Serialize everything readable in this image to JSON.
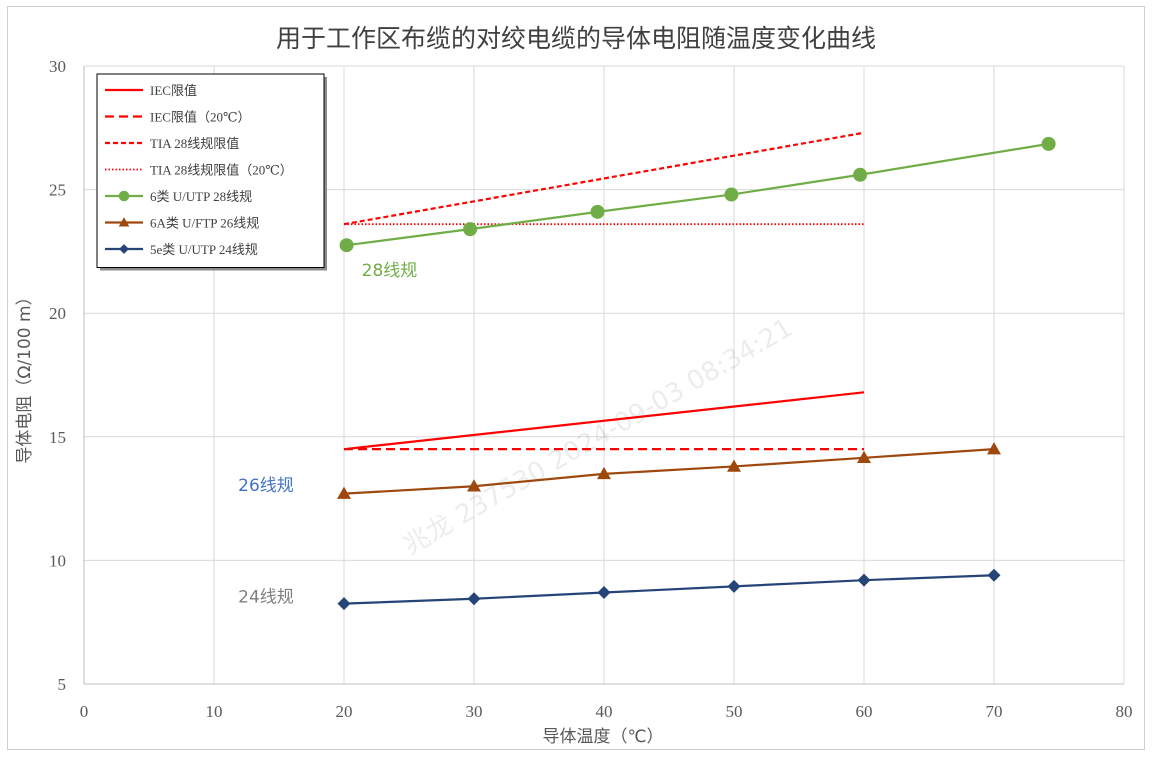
{
  "chart_data": {
    "type": "line",
    "title": "用于工作区布缆的对绞电缆的导体电阻随温度变化曲线",
    "xlabel": "导体温度（℃）",
    "ylabel": "导体电阻（Ω/100 m）",
    "xlim": [
      0,
      80
    ],
    "ylim": [
      5,
      30
    ],
    "x_ticks": [
      "0",
      "10",
      "20",
      "30",
      "40",
      "50",
      "60",
      "70",
      "80"
    ],
    "y_ticks": [
      "5",
      "10",
      "15",
      "20",
      "25",
      "30"
    ],
    "grid": true,
    "legend_position": "top-left",
    "series": [
      {
        "name": "IEC限值",
        "color": "#ff0000",
        "dash": "solid",
        "marker": "none",
        "x": [
          20,
          60
        ],
        "y": [
          14.5,
          16.8
        ]
      },
      {
        "name": "IEC限值（20℃）",
        "color": "#ff0000",
        "dash": "dashed",
        "marker": "none",
        "x": [
          20,
          60
        ],
        "y": [
          14.5,
          14.5
        ]
      },
      {
        "name": "TIA 28线规限值",
        "color": "#ff0000",
        "dash": "short-dash",
        "marker": "none",
        "x": [
          20,
          60
        ],
        "y": [
          23.6,
          27.3
        ]
      },
      {
        "name": "TIA 28线规限值（20℃）",
        "color": "#ff0000",
        "dash": "dotted",
        "marker": "none",
        "x": [
          20,
          60
        ],
        "y": [
          23.6,
          23.6
        ]
      },
      {
        "name": "6类 U/UTP 28线规",
        "color": "#70ad47",
        "dash": "solid",
        "marker": "circle",
        "x": [
          20.2,
          29.7,
          39.5,
          49.8,
          59.7,
          74.2
        ],
        "y": [
          22.75,
          23.4,
          24.1,
          24.8,
          25.6,
          26.85
        ]
      },
      {
        "name": "6A类 U/FTP 26线规",
        "color": "#9e480e",
        "dash": "solid",
        "marker": "triangle",
        "x": [
          20,
          30,
          40,
          50,
          60,
          70
        ],
        "y": [
          12.7,
          13.0,
          13.5,
          13.8,
          14.15,
          14.5
        ]
      },
      {
        "name": "5e类 U/UTP 24线规",
        "color": "#264478",
        "dash": "solid",
        "marker": "diamond",
        "x": [
          20,
          30,
          40,
          50,
          60,
          70
        ],
        "y": [
          8.25,
          8.45,
          8.7,
          8.95,
          9.2,
          9.4
        ]
      }
    ],
    "annotations": [
      {
        "text": "28线规",
        "x": 23.5,
        "y": 21.5,
        "color": "#70ad47"
      },
      {
        "text": "26线规",
        "x": 14,
        "y": 12.8,
        "color": "#4472c4"
      },
      {
        "text": "24线规",
        "x": 14,
        "y": 8.3,
        "color": "#7f7f7f"
      }
    ],
    "watermark": "兆龙 237530      2024-09-03    08:34:21"
  }
}
